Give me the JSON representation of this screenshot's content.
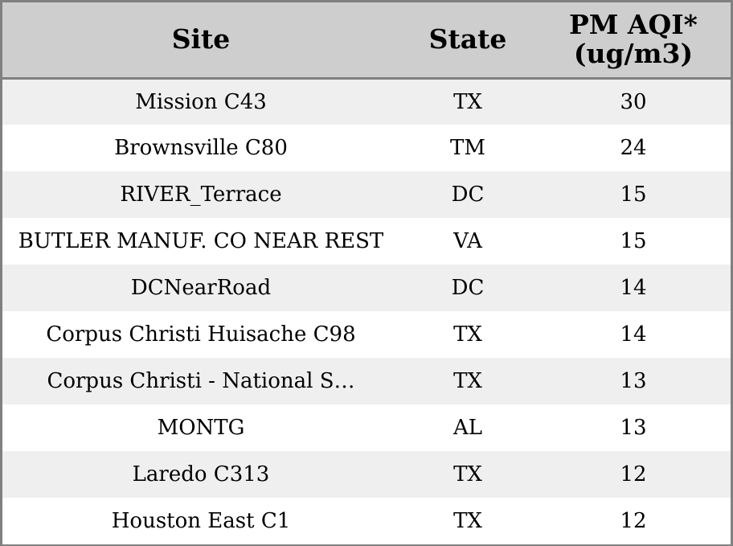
{
  "table": {
    "headers": {
      "site": "Site",
      "state": "State",
      "pm_line1": "PM AQI*",
      "pm_line2": "(ug/m3)"
    },
    "rows": [
      {
        "site": "Mission C43",
        "state": "TX",
        "pm": "30"
      },
      {
        "site": "Brownsville C80",
        "state": "TM",
        "pm": "24"
      },
      {
        "site": "RIVER_Terrace",
        "state": "DC",
        "pm": "15"
      },
      {
        "site": "BUTLER MANUF. CO NEAR REST",
        "state": "VA",
        "pm": "15"
      },
      {
        "site": "DCNearRoad",
        "state": "DC",
        "pm": "14"
      },
      {
        "site": "Corpus Christi Huisache C98",
        "state": "TX",
        "pm": "14"
      },
      {
        "site": "Corpus Christi - National S…",
        "state": "TX",
        "pm": "13"
      },
      {
        "site": "MONTG",
        "state": "AL",
        "pm": "13"
      },
      {
        "site": "Laredo C313",
        "state": "TX",
        "pm": "12"
      },
      {
        "site": "Houston East C1",
        "state": "TX",
        "pm": "12"
      }
    ]
  },
  "colors": {
    "header_bg": "#cecece",
    "stripe_bg": "#efefef",
    "row_bg": "#ffffff",
    "border": "#808080"
  }
}
